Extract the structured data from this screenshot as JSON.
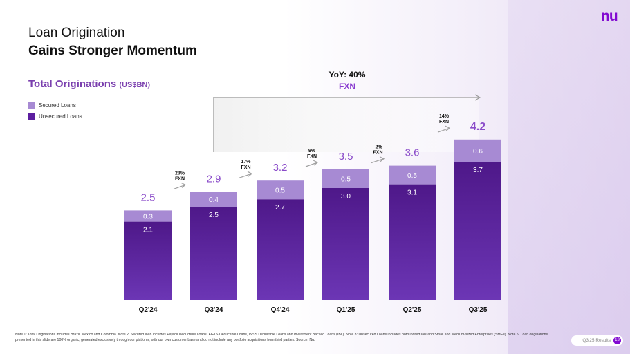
{
  "brand": {
    "logo": "nu",
    "colors": {
      "accent": "#820ad1",
      "unsecured": "#5c1fa0",
      "secured": "#a78ad3",
      "total": "#8a4bc9"
    }
  },
  "header": {
    "title_line1": "Loan Origination",
    "title_line2": "Gains Stronger Momentum"
  },
  "subtitle": {
    "label": "Total Originations",
    "unit": "(US$BN)"
  },
  "legend": [
    {
      "label": "Secured Loans",
      "color": "#a78ad3"
    },
    {
      "label": "Unsecured Loans",
      "color": "#5c1fa0"
    }
  ],
  "yoy": {
    "line1": "YoY: 40%",
    "line2": "FXN"
  },
  "chart_data": {
    "type": "bar",
    "stacked": true,
    "title": "Total Originations (US$BN)",
    "categories": [
      "Q2'24",
      "Q3'24",
      "Q4'24",
      "Q1'25",
      "Q2'25",
      "Q3'25"
    ],
    "series": [
      {
        "name": "Unsecured Loans",
        "values": [
          2.1,
          2.5,
          2.7,
          3.0,
          3.1,
          3.7
        ]
      },
      {
        "name": "Secured Loans",
        "values": [
          0.3,
          0.4,
          0.5,
          0.5,
          0.5,
          0.6
        ]
      }
    ],
    "totals": [
      2.5,
      2.9,
      3.2,
      3.5,
      3.6,
      4.2
    ],
    "growth_labels": [
      "23% FXN",
      "17% FXN",
      "9% FXN",
      "-2% FXN",
      "14% FXN"
    ],
    "ylim": [
      0,
      4.2
    ]
  },
  "footnote": "Note 1: Total Originations includes Brazil, Mexico and Colombia. Note 2: Secured loan includes Payroll Deductible Loans, FGTS Deductible Loans, INSS Deductible Loans and Investment Backed Loans (IBL). Note 3: Unsecured Loans includes both individuals and Small and Medium-sized Enterprises (SMEs). Note 5: Loan originations presented in this slide are 100% organic, generated exclusively through our platform, with our own customer base and do not include any portfolio acquisitions from third parties. Source: Nu.",
  "footer": {
    "label": "Q3'25 Results",
    "page": "13"
  }
}
